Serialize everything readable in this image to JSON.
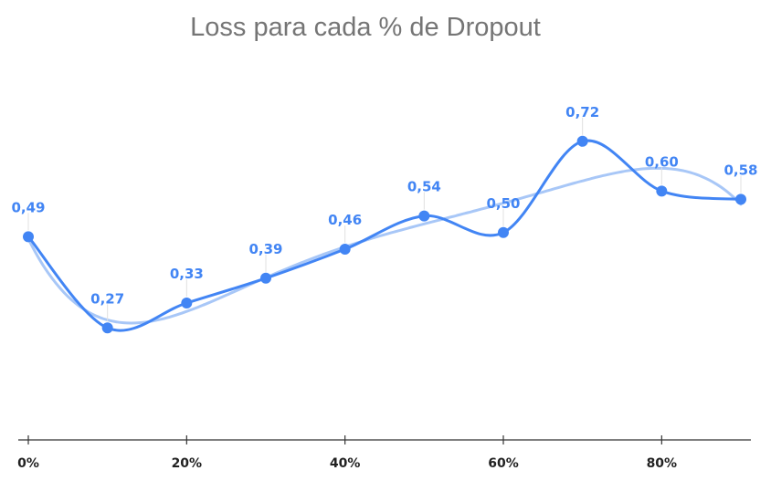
{
  "chart_data": {
    "type": "line",
    "title": "Loss para cada % de Dropout",
    "xlabel": "",
    "ylabel": "",
    "x": [
      0,
      10,
      20,
      30,
      40,
      50,
      60,
      70,
      80,
      90
    ],
    "x_ticks": [
      0,
      20,
      40,
      60,
      80
    ],
    "x_tick_labels": [
      "0%",
      "20%",
      "40%",
      "60%",
      "80%"
    ],
    "xlim": [
      0,
      90
    ],
    "ylim": [
      0,
      0.9
    ],
    "grid": false,
    "legend": "none",
    "series": [
      {
        "values": [
          0.49,
          0.27,
          0.33,
          0.39,
          0.46,
          0.54,
          0.5,
          0.72,
          0.6,
          0.58
        ],
        "labels": [
          "0,49",
          "0,27",
          "0,33",
          "0,39",
          "0,46",
          "0,54",
          "0,50",
          "0,72",
          "0,60",
          "0,58"
        ],
        "color": "#4285f4",
        "markers": true
      }
    ],
    "trendline": {
      "color": "#a8c7f7",
      "type": "polynomial"
    }
  }
}
